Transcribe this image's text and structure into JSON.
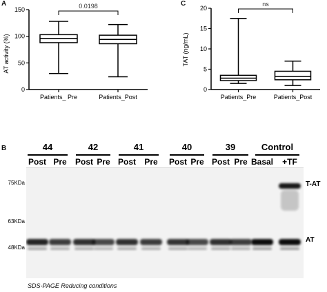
{
  "panels": {
    "a": "A",
    "b": "B",
    "c": "C"
  },
  "chart_data": [
    {
      "type": "box",
      "ylabel": "AT activity (%)",
      "ylim": [
        0,
        150
      ],
      "yticks": [
        "0",
        "50",
        "100",
        "150"
      ],
      "categories": [
        "Patients_ Pre",
        "Patients_Post"
      ],
      "boxes": [
        {
          "min": 30,
          "q1": 88,
          "median": 96,
          "q3": 103,
          "max": 128
        },
        {
          "min": 24,
          "q1": 86,
          "median": 94,
          "q3": 102,
          "max": 122
        }
      ],
      "annotation": "0.0198"
    },
    {
      "type": "box",
      "ylabel": "TAT (ng/mL)",
      "ylim": [
        0,
        20
      ],
      "yticks": [
        "0",
        "5",
        "10",
        "15",
        "20"
      ],
      "categories": [
        "Patients_Pre",
        "Patients_Post"
      ],
      "boxes": [
        {
          "min": 1.5,
          "q1": 2.2,
          "median": 2.8,
          "q3": 3.5,
          "max": 17.5
        },
        {
          "min": 1.0,
          "q1": 2.4,
          "median": 3.2,
          "q3": 4.5,
          "max": 7.0
        }
      ],
      "annotation": "ns"
    }
  ],
  "blot": {
    "samples": [
      "44",
      "42",
      "41",
      "40",
      "39",
      "Control"
    ],
    "lane_labels": [
      "Post",
      "Pre",
      "Post",
      "Pre",
      "Post",
      "Pre",
      "Post",
      "Pre",
      "Post",
      "Pre",
      "Basal",
      "+TF"
    ],
    "markers": [
      "75KDa",
      "63KDa",
      "48KDa"
    ],
    "band_labels": [
      "T-AT",
      "AT"
    ],
    "caption": "SDS-PAGE Reducing conditions"
  }
}
